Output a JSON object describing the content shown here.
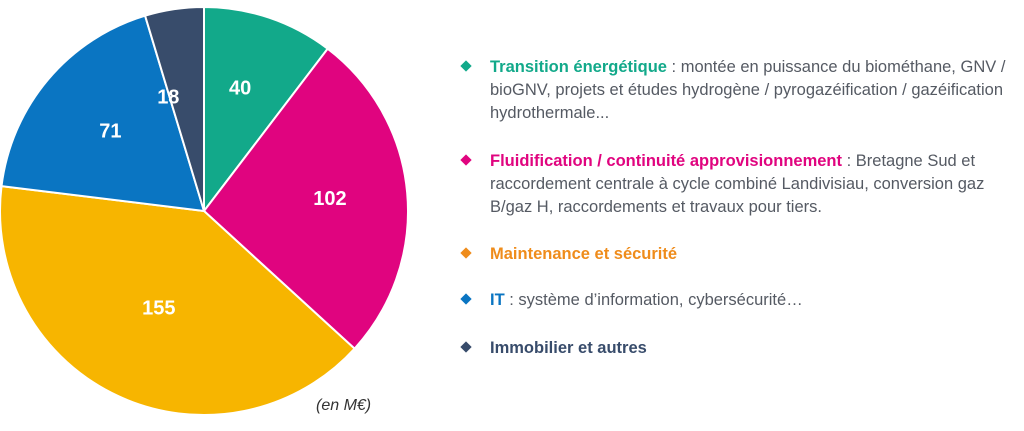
{
  "chart_data": {
    "type": "pie",
    "unit_note": "(en M€)",
    "slices": [
      {
        "label": "Transition énergétique",
        "value": 40,
        "color": "#12a98a"
      },
      {
        "label": "Fluidification / continuité approvisionnement",
        "value": 102,
        "color": "#e0047f"
      },
      {
        "label": "Maintenance et sécurité",
        "value": 155,
        "color": "#f7b500"
      },
      {
        "label": "IT",
        "value": 71,
        "color": "#0a75c2"
      },
      {
        "label": "Immobilier et autres",
        "value": 18,
        "color": "#384c6b"
      }
    ],
    "start": "12 o'clock, clockwise",
    "legend_placement": "right"
  },
  "legend": [
    {
      "name": "Transition énergétique",
      "description": " : montée en puissance du biométhane, GNV / bioGNV, projets et études hydrogène / pyrogazéification / gazéification hydrothermale...",
      "color": "#12a98a"
    },
    {
      "name": "Fluidification / continuité approvisionnement",
      "description": " : Bretagne Sud et raccordement centrale à cycle combiné Landivisiau, conversion gaz B/gaz H, raccordements et travaux pour tiers.",
      "color": "#e0047f"
    },
    {
      "name": "Maintenance et sécurité",
      "description": "",
      "color": "#ef8c1b"
    },
    {
      "name": "IT",
      "description": " : système d’information, cybersécurité…",
      "color": "#0a75c2"
    },
    {
      "name": "Immobilier et autres",
      "description": "",
      "color": "#384c6b"
    }
  ]
}
